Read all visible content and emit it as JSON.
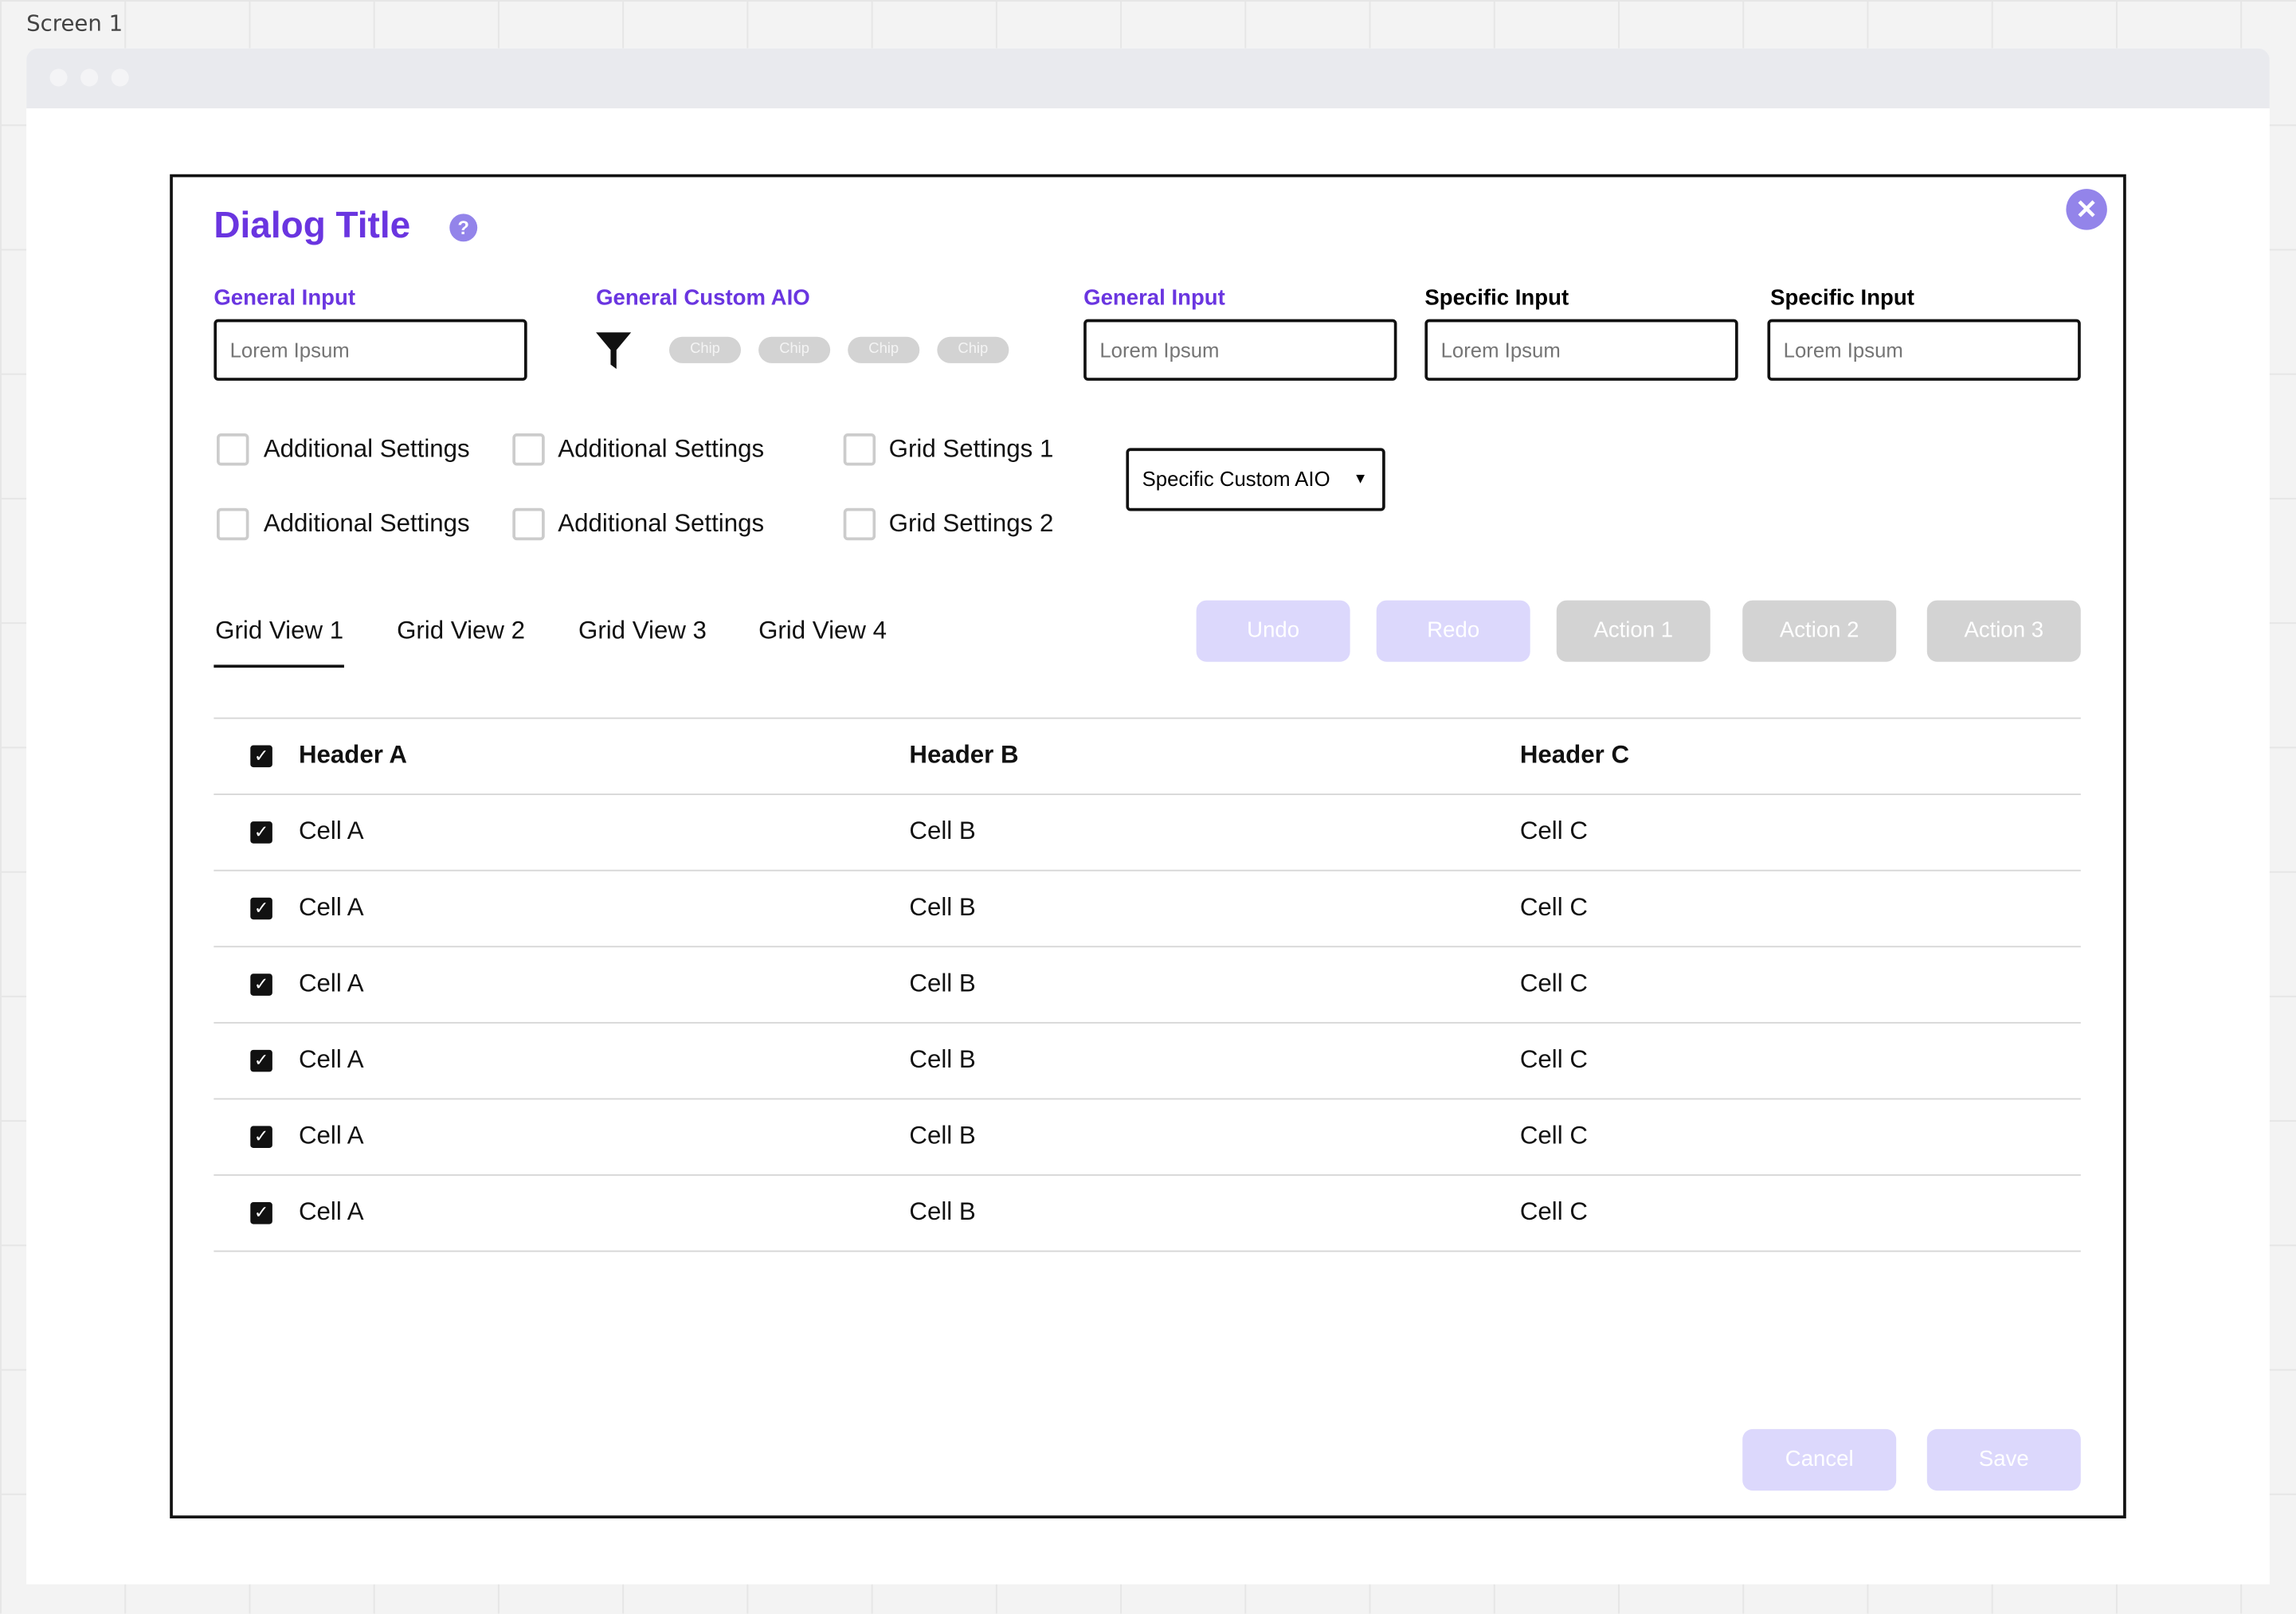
{
  "canvas": {
    "screen_label": "Screen 1"
  },
  "colors": {
    "accent": "#6a35e0",
    "icon": "#9384ea",
    "disabled_primary": "#dcd8fc",
    "disabled_secondary": "#d3d3d3"
  },
  "dialog": {
    "title": "Dialog Title",
    "help_icon": "question-circle-icon",
    "close_icon": "close-circle-icon",
    "fields": [
      {
        "label": "General Input",
        "placeholder": "Lorem Ipsum"
      },
      {
        "label": "General Custom AIO",
        "chips": [
          "Chip",
          "Chip",
          "Chip",
          "Chip"
        ],
        "icon": "filter-icon"
      },
      {
        "label": "General Input",
        "placeholder": "Lorem Ipsum"
      },
      {
        "label": "Specific Input",
        "placeholder": "Lorem Ipsum"
      },
      {
        "label": "Specific Input",
        "placeholder": "Lorem Ipsum"
      }
    ],
    "checkboxes": [
      {
        "label": "Additional Settings",
        "checked": false
      },
      {
        "label": "Additional Settings",
        "checked": false
      },
      {
        "label": "Grid Settings 1",
        "checked": false
      },
      {
        "label": "Additional Settings",
        "checked": false
      },
      {
        "label": "Additional Settings",
        "checked": false
      },
      {
        "label": "Grid Settings 2",
        "checked": false
      }
    ],
    "dropdown": {
      "value": "Specific Custom AIO"
    },
    "tabs": [
      {
        "label": "Grid View 1",
        "active": true
      },
      {
        "label": "Grid View 2"
      },
      {
        "label": "Grid View 3"
      },
      {
        "label": "Grid View 4"
      }
    ],
    "toolbar": [
      "Undo",
      "Redo",
      "Action 1",
      "Action 2",
      "Action 3"
    ],
    "table": {
      "headers": [
        "Header A",
        "Header B",
        "Header C"
      ],
      "rows": [
        [
          "Cell A",
          "Cell B",
          "Cell C"
        ],
        [
          "Cell A",
          "Cell B",
          "Cell C"
        ],
        [
          "Cell A",
          "Cell B",
          "Cell C"
        ],
        [
          "Cell A",
          "Cell B",
          "Cell C"
        ],
        [
          "Cell A",
          "Cell B",
          "Cell C"
        ],
        [
          "Cell A",
          "Cell B",
          "Cell C"
        ]
      ]
    },
    "footer": {
      "cancel": "Cancel",
      "save": "Save"
    }
  }
}
